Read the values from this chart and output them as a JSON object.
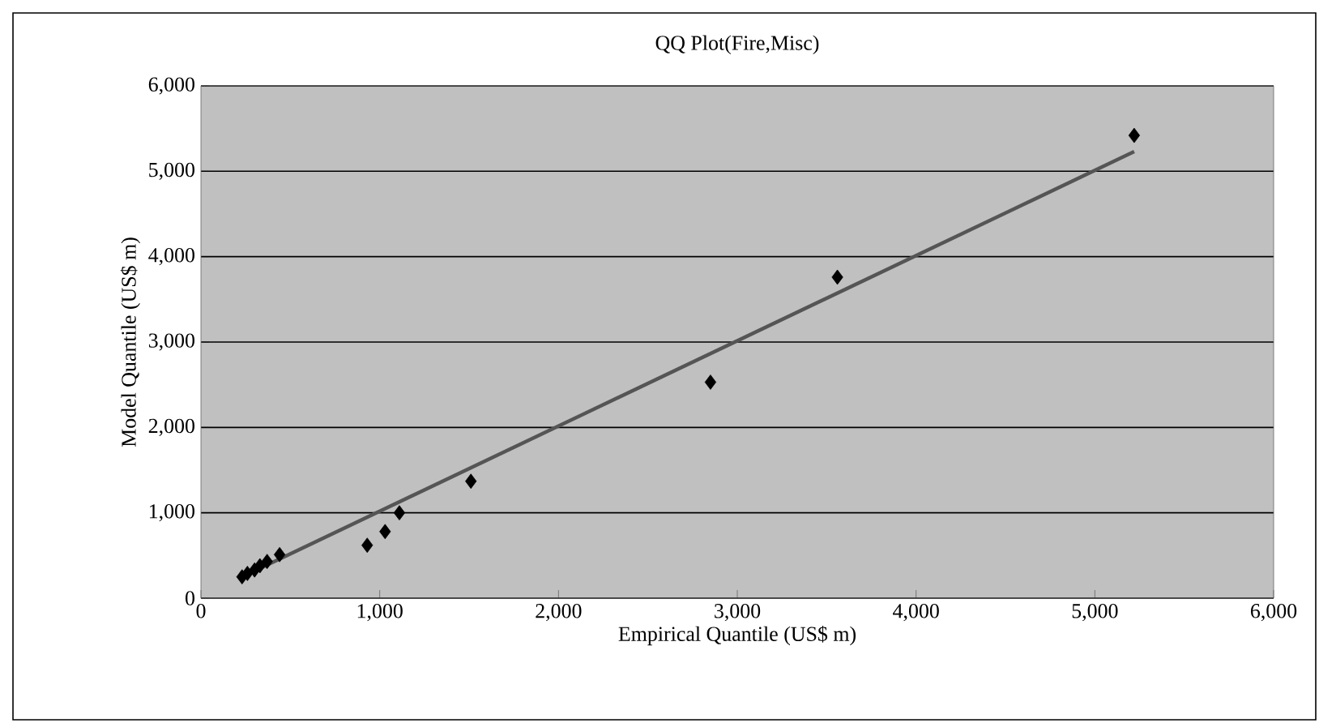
{
  "chart_data": {
    "type": "scatter",
    "title": "QQ Plot(Fire,Misc)",
    "xlabel": "Empirical Quantile (US$ m)",
    "ylabel": "Model Quantile (US$ m)",
    "xlim": [
      0,
      6000
    ],
    "ylim": [
      0,
      6000
    ],
    "xticks": [
      0,
      {
        "value": 1000,
        "label": "1,000"
      },
      {
        "value": 2000,
        "label": "2,000"
      },
      {
        "value": 3000,
        "label": "3,000"
      },
      {
        "value": 4000,
        "label": "4,000"
      },
      {
        "value": 5000,
        "label": "5,000"
      },
      {
        "value": 6000,
        "label": "6,000"
      }
    ],
    "yticks": [
      0,
      {
        "value": 1000,
        "label": "1,000"
      },
      {
        "value": 2000,
        "label": "2,000"
      },
      {
        "value": 3000,
        "label": "3,000"
      },
      {
        "value": 4000,
        "label": "4,000"
      },
      {
        "value": 5000,
        "label": "5,000"
      },
      {
        "value": 6000,
        "label": "6,000"
      }
    ],
    "grid": "y",
    "series": [
      {
        "marker": "diamond",
        "color": "#000000",
        "x": [
          230,
          260,
          300,
          330,
          370,
          440,
          930,
          1030,
          1110,
          1510,
          2850,
          3560,
          5220
        ],
        "values": [
          250,
          290,
          330,
          380,
          430,
          510,
          620,
          780,
          1000,
          1370,
          2530,
          3760,
          5420
        ]
      },
      {
        "type": "line",
        "marker": "none",
        "color": "#555555",
        "x": [
          230,
          5220
        ],
        "values": [
          250,
          5230
        ]
      }
    ]
  }
}
